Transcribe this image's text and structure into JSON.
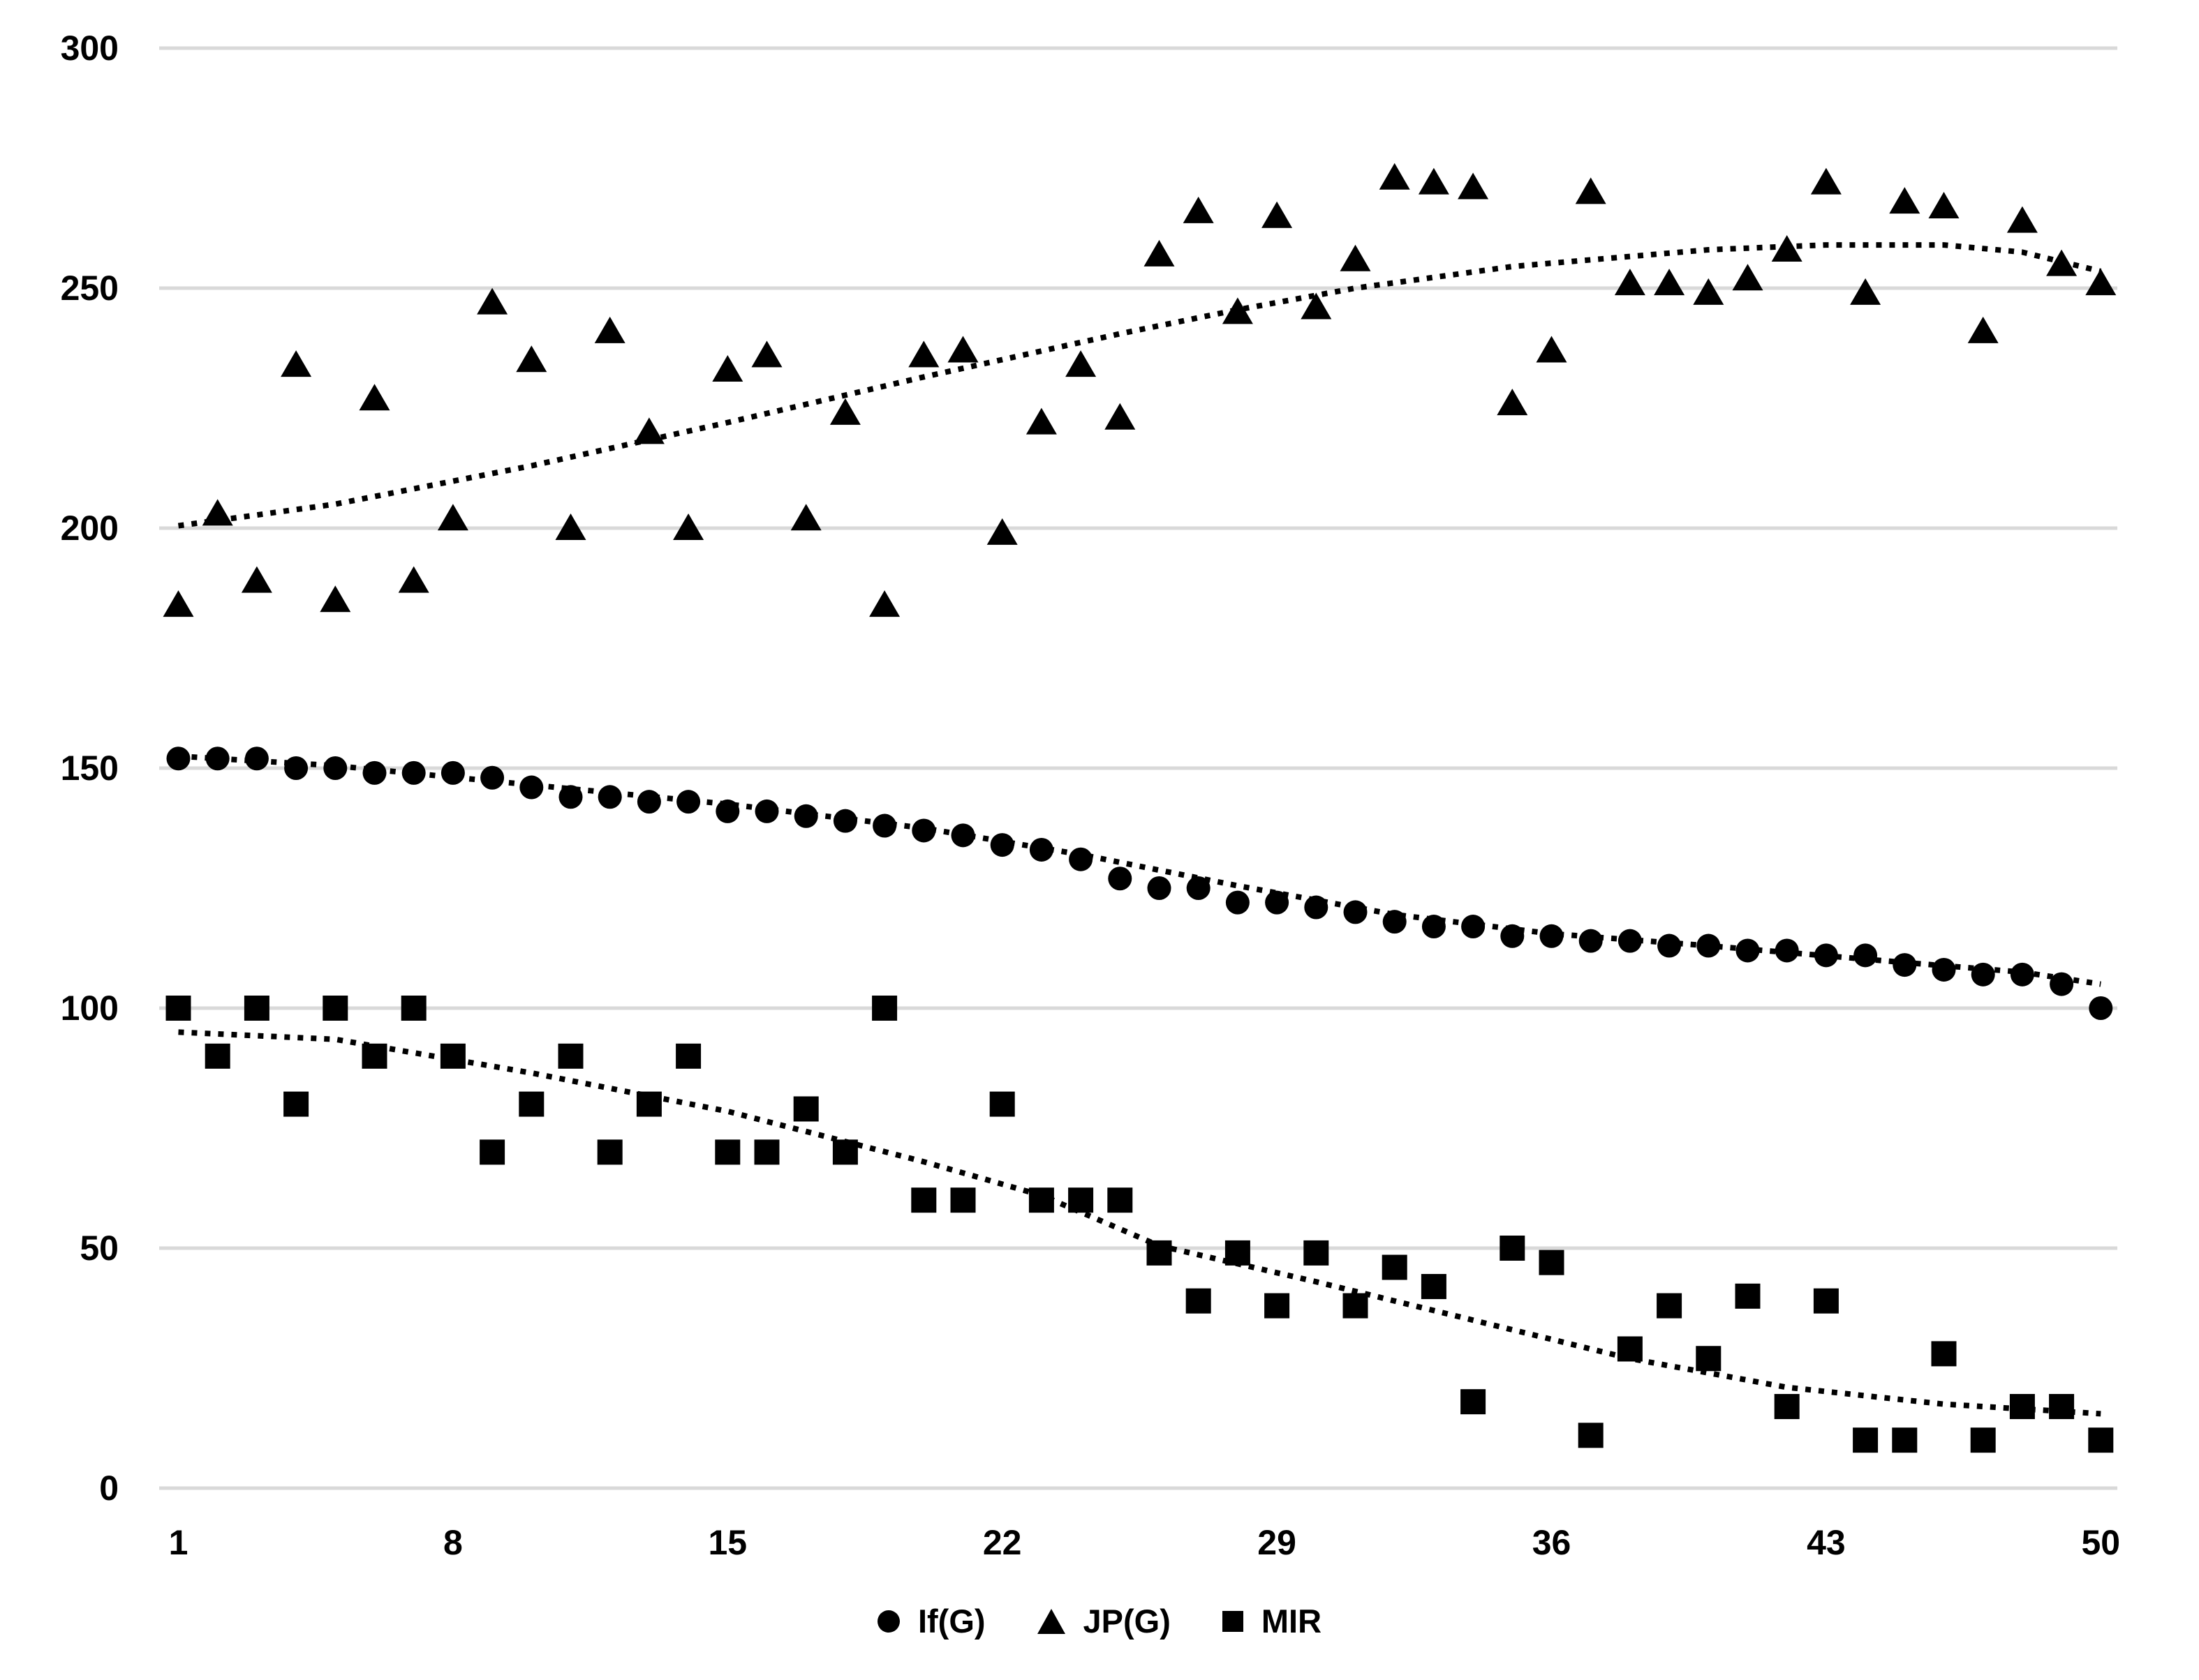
{
  "chart_data": {
    "type": "scatter",
    "title": "",
    "xlabel": "",
    "ylabel": "",
    "xlim": [
      1,
      50
    ],
    "ylim": [
      0,
      300
    ],
    "xticks": [
      1,
      8,
      15,
      22,
      29,
      36,
      43,
      50
    ],
    "yticks": [
      0,
      50,
      100,
      150,
      200,
      250,
      300
    ],
    "grid": true,
    "legend_position": "bottom",
    "marker_color": "#000000",
    "gridline_color": "#d9d9d9",
    "x": [
      1,
      2,
      3,
      4,
      5,
      6,
      7,
      8,
      9,
      10,
      11,
      12,
      13,
      14,
      15,
      16,
      17,
      18,
      19,
      20,
      21,
      22,
      23,
      24,
      25,
      26,
      27,
      28,
      29,
      30,
      31,
      32,
      33,
      34,
      35,
      36,
      37,
      38,
      39,
      40,
      41,
      42,
      43,
      44,
      45,
      46,
      47,
      48,
      49,
      50
    ],
    "series": [
      {
        "name": "If(G)",
        "marker": "circle",
        "values": [
          152,
          152,
          152,
          150,
          150,
          149,
          149,
          149,
          148,
          146,
          144,
          144,
          143,
          143,
          141,
          141,
          140,
          139,
          138,
          137,
          136,
          134,
          133,
          131,
          127,
          125,
          125,
          122,
          122,
          121,
          120,
          118,
          117,
          117,
          115,
          115,
          114,
          114,
          113,
          113,
          112,
          112,
          111,
          111,
          109,
          108,
          107,
          107,
          105,
          100
        ]
      },
      {
        "name": "JP(G)",
        "marker": "triangle",
        "values": [
          184,
          203,
          189,
          234,
          185,
          227,
          189,
          202,
          247,
          235,
          200,
          241,
          220,
          200,
          233,
          236,
          202,
          224,
          184,
          236,
          237,
          199,
          222,
          234,
          223,
          257,
          266,
          245,
          265,
          246,
          256,
          273,
          272,
          271,
          226,
          237,
          270,
          251,
          251,
          249,
          252,
          258,
          272,
          249,
          268,
          267,
          241,
          264,
          255,
          251
        ]
      },
      {
        "name": "MIR",
        "marker": "square",
        "values": [
          100,
          90,
          100,
          80,
          100,
          90,
          100,
          90,
          70,
          80,
          90,
          70,
          80,
          90,
          70,
          70,
          79,
          70,
          100,
          60,
          60,
          80,
          60,
          60,
          60,
          49,
          39,
          49,
          38,
          49,
          38,
          46,
          42,
          18,
          50,
          47,
          11,
          29,
          38,
          27,
          40,
          17,
          39,
          10,
          10,
          28,
          10,
          17,
          17,
          10
        ]
      }
    ],
    "trendlines": [
      {
        "series": "If(G)",
        "style": "dotted",
        "points": [
          [
            1,
            152.5
          ],
          [
            5,
            150.5
          ],
          [
            10,
            146.5
          ],
          [
            15,
            142.5
          ],
          [
            20,
            137.5
          ],
          [
            24,
            132
          ],
          [
            28,
            125.5
          ],
          [
            32,
            119.5
          ],
          [
            36,
            115.5
          ],
          [
            40,
            113
          ],
          [
            45,
            109.5
          ],
          [
            48,
            107.5
          ],
          [
            50,
            105
          ]
        ]
      },
      {
        "series": "JP(G)",
        "style": "dotted",
        "points": [
          [
            1,
            200.5
          ],
          [
            5,
            205
          ],
          [
            10,
            213
          ],
          [
            15,
            222
          ],
          [
            20,
            231.5
          ],
          [
            25,
            240.5
          ],
          [
            28,
            245.5
          ],
          [
            31,
            250
          ],
          [
            35,
            254.5
          ],
          [
            40,
            258
          ],
          [
            43,
            259
          ],
          [
            46,
            259
          ],
          [
            48,
            257.5
          ],
          [
            50,
            253.5
          ]
        ]
      },
      {
        "series": "MIR",
        "style": "dotted",
        "points": [
          [
            1,
            95
          ],
          [
            5,
            93.5
          ],
          [
            10,
            86.5
          ],
          [
            15,
            78.5
          ],
          [
            20,
            68
          ],
          [
            23,
            61
          ],
          [
            26,
            50.5
          ],
          [
            30,
            43
          ],
          [
            34,
            35
          ],
          [
            38,
            27
          ],
          [
            42,
            21
          ],
          [
            46,
            17.5
          ],
          [
            50,
            15.5
          ]
        ]
      }
    ]
  },
  "legend": {
    "items": [
      {
        "label": "If(G)",
        "marker": "circle"
      },
      {
        "label": "JP(G)",
        "marker": "triangle"
      },
      {
        "label": "MIR",
        "marker": "square"
      }
    ]
  }
}
